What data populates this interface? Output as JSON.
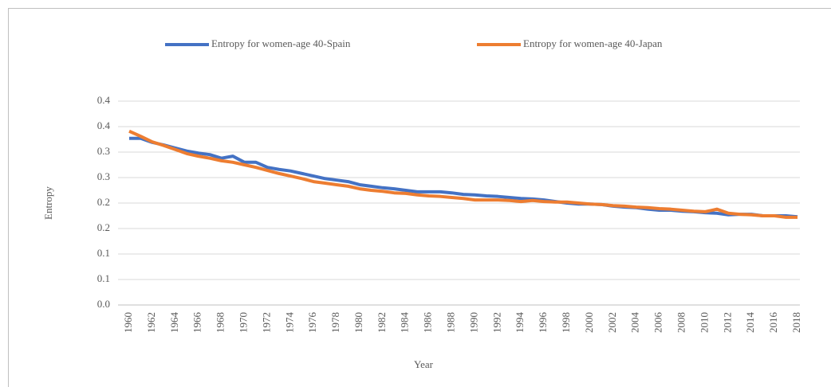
{
  "chart_data": {
    "type": "line",
    "x_label": "Year",
    "y_label": "Entropy",
    "x": [
      1960,
      1961,
      1962,
      1963,
      1964,
      1965,
      1966,
      1967,
      1968,
      1969,
      1970,
      1971,
      1972,
      1973,
      1974,
      1975,
      1976,
      1977,
      1978,
      1979,
      1980,
      1981,
      1982,
      1983,
      1984,
      1985,
      1986,
      1987,
      1988,
      1989,
      1990,
      1991,
      1992,
      1993,
      1994,
      1995,
      1996,
      1997,
      1998,
      1999,
      2000,
      2001,
      2002,
      2003,
      2004,
      2005,
      2006,
      2007,
      2008,
      2009,
      2010,
      2011,
      2012,
      2013,
      2014,
      2015,
      2016,
      2017,
      2018
    ],
    "series": [
      {
        "name": "Entropy for women-age 40-Spain",
        "color": "#4472c4",
        "values": [
          0.327,
          0.327,
          0.319,
          0.314,
          0.308,
          0.302,
          0.298,
          0.295,
          0.288,
          0.292,
          0.28,
          0.28,
          0.27,
          0.266,
          0.263,
          0.258,
          0.253,
          0.248,
          0.245,
          0.242,
          0.236,
          0.233,
          0.23,
          0.228,
          0.225,
          0.222,
          0.222,
          0.222,
          0.22,
          0.217,
          0.216,
          0.214,
          0.213,
          0.211,
          0.209,
          0.208,
          0.206,
          0.203,
          0.2,
          0.198,
          0.198,
          0.197,
          0.194,
          0.192,
          0.191,
          0.188,
          0.186,
          0.186,
          0.184,
          0.183,
          0.181,
          0.18,
          0.177,
          0.178,
          0.178,
          0.175,
          0.175,
          0.175,
          0.173
        ]
      },
      {
        "name": "Entropy for women-age 40-Japan",
        "color": "#ed7d31",
        "values": [
          0.341,
          0.331,
          0.32,
          0.313,
          0.305,
          0.297,
          0.292,
          0.288,
          0.283,
          0.28,
          0.275,
          0.27,
          0.264,
          0.258,
          0.253,
          0.248,
          0.242,
          0.239,
          0.236,
          0.233,
          0.228,
          0.225,
          0.223,
          0.22,
          0.219,
          0.216,
          0.214,
          0.213,
          0.211,
          0.209,
          0.206,
          0.206,
          0.206,
          0.205,
          0.203,
          0.205,
          0.203,
          0.202,
          0.202,
          0.2,
          0.198,
          0.197,
          0.195,
          0.194,
          0.192,
          0.191,
          0.189,
          0.188,
          0.186,
          0.184,
          0.183,
          0.188,
          0.18,
          0.178,
          0.177,
          0.175,
          0.175,
          0.172,
          0.172
        ]
      }
    ],
    "xlim": [
      1960,
      2018
    ],
    "xticks": [
      1960,
      1962,
      1964,
      1966,
      1968,
      1970,
      1972,
      1974,
      1976,
      1978,
      1980,
      1982,
      1984,
      1986,
      1988,
      1990,
      1992,
      1994,
      1996,
      1998,
      2000,
      2002,
      2004,
      2006,
      2008,
      2010,
      2012,
      2014,
      2016,
      2018
    ],
    "ylim": [
      0,
      0.4
    ],
    "yticks": [
      {
        "value": 0,
        "label": "0.0"
      },
      {
        "value": 0.05,
        "label": "0.1"
      },
      0.1,
      {
        "value": 0.15,
        "label": "0.2"
      },
      0.2,
      {
        "value": 0.25,
        "label": "0.3"
      },
      0.3,
      {
        "value": 0.35,
        "label": "0.4"
      },
      0.4
    ],
    "grid": true,
    "legend": "top"
  }
}
